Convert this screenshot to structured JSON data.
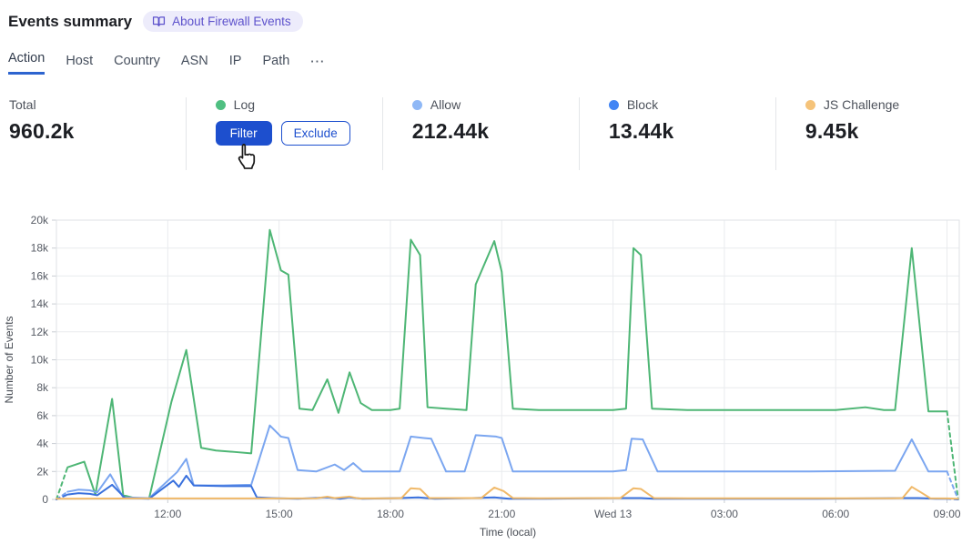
{
  "header": {
    "title": "Events summary",
    "about_badge": "About Firewall Events"
  },
  "tabs": {
    "items": [
      "Action",
      "Host",
      "Country",
      "ASN",
      "IP",
      "Path"
    ],
    "active": "Action",
    "more_label": "···"
  },
  "stats": {
    "cards": [
      {
        "label": "Total",
        "value": "960.2k"
      },
      {
        "label": "Log",
        "dot_color": "#4fbf81",
        "filter_label": "Filter",
        "exclude_label": "Exclude"
      },
      {
        "label": "Allow",
        "value": "212.44k",
        "dot_color": "#8fb8f6"
      },
      {
        "label": "Block",
        "value": "13.44k",
        "dot_color": "#4285f4"
      },
      {
        "label": "JS Challenge",
        "value": "9.45k",
        "dot_color": "#f5c37a"
      }
    ]
  },
  "ui_colors": {
    "accent_blue": "#1d4fce",
    "tab_underline": "#2d64cf",
    "badge_bg": "#edecfb",
    "badge_text": "#5d52cc"
  },
  "chart_data": {
    "type": "line",
    "title": "",
    "xlabel": "Time (local)",
    "ylabel": "Number of Events",
    "y_unit": "thousands of events",
    "ylim_k": [
      0,
      20
    ],
    "grid": true,
    "y_ticks": [
      {
        "v": 0,
        "label": "0"
      },
      {
        "v": 2,
        "label": "2k"
      },
      {
        "v": 4,
        "label": "4k"
      },
      {
        "v": 6,
        "label": "6k"
      },
      {
        "v": 8,
        "label": "8k"
      },
      {
        "v": 10,
        "label": "10k"
      },
      {
        "v": 12,
        "label": "12k"
      },
      {
        "v": 14,
        "label": "14k"
      },
      {
        "v": 16,
        "label": "16k"
      },
      {
        "v": 18,
        "label": "18k"
      },
      {
        "v": 20,
        "label": "20k"
      }
    ],
    "x_range_hours": [
      0,
      24.33
    ],
    "x_ticks": [
      {
        "h": 3,
        "label": "12:00"
      },
      {
        "h": 6,
        "label": "15:00"
      },
      {
        "h": 9,
        "label": "18:00"
      },
      {
        "h": 12,
        "label": "21:00"
      },
      {
        "h": 15,
        "label": "Wed 13"
      },
      {
        "h": 18,
        "label": "03:00"
      },
      {
        "h": 21,
        "label": "06:00"
      },
      {
        "h": 24,
        "label": "09:00"
      }
    ],
    "series": [
      {
        "name": "Log",
        "color": "#4eb675",
        "dashed_ends": true,
        "points": [
          [
            0,
            0
          ],
          [
            0.3,
            2.3
          ],
          [
            0.75,
            2.7
          ],
          [
            1.05,
            0.35
          ],
          [
            1.5,
            7.2
          ],
          [
            1.8,
            0.3
          ],
          [
            2.1,
            0.1
          ],
          [
            2.5,
            0.1
          ],
          [
            3.1,
            7
          ],
          [
            3.5,
            10.7
          ],
          [
            3.9,
            3.7
          ],
          [
            4.3,
            3.5
          ],
          [
            4.8,
            3.4
          ],
          [
            5.25,
            3.3
          ],
          [
            5.75,
            19.3
          ],
          [
            6.05,
            16.4
          ],
          [
            6.25,
            16.1
          ],
          [
            6.55,
            6.5
          ],
          [
            6.9,
            6.4
          ],
          [
            7.3,
            8.6
          ],
          [
            7.6,
            6.2
          ],
          [
            7.9,
            9.1
          ],
          [
            8.2,
            6.9
          ],
          [
            8.5,
            6.4
          ],
          [
            9,
            6.4
          ],
          [
            9.25,
            6.5
          ],
          [
            9.55,
            18.6
          ],
          [
            9.8,
            17.5
          ],
          [
            10,
            6.6
          ],
          [
            10.5,
            6.5
          ],
          [
            11.05,
            6.4
          ],
          [
            11.3,
            15.4
          ],
          [
            11.8,
            18.5
          ],
          [
            12,
            16.3
          ],
          [
            12.3,
            6.5
          ],
          [
            13,
            6.4
          ],
          [
            14,
            6.4
          ],
          [
            15,
            6.4
          ],
          [
            15.35,
            6.5
          ],
          [
            15.55,
            18
          ],
          [
            15.75,
            17.5
          ],
          [
            16.05,
            6.5
          ],
          [
            17,
            6.4
          ],
          [
            18,
            6.4
          ],
          [
            19,
            6.4
          ],
          [
            20,
            6.4
          ],
          [
            21,
            6.4
          ],
          [
            21.8,
            6.6
          ],
          [
            22.3,
            6.4
          ],
          [
            22.6,
            6.4
          ],
          [
            23.05,
            18
          ],
          [
            23.5,
            6.3
          ],
          [
            24,
            6.3
          ],
          [
            24.3,
            0
          ]
        ]
      },
      {
        "name": "Allow",
        "color": "#7ba6f0",
        "dashed_ends": true,
        "points": [
          [
            0,
            0
          ],
          [
            0.3,
            0.55
          ],
          [
            0.6,
            0.7
          ],
          [
            0.9,
            0.65
          ],
          [
            1.1,
            0.5
          ],
          [
            1.45,
            1.8
          ],
          [
            1.8,
            0.15
          ],
          [
            2.5,
            0.1
          ],
          [
            3.25,
            1.95
          ],
          [
            3.5,
            2.9
          ],
          [
            3.7,
            1
          ],
          [
            4.5,
            1
          ],
          [
            5.25,
            1.05
          ],
          [
            5.75,
            5.3
          ],
          [
            6.05,
            4.5
          ],
          [
            6.25,
            4.4
          ],
          [
            6.5,
            2.1
          ],
          [
            7,
            2
          ],
          [
            7.5,
            2.5
          ],
          [
            7.75,
            2.1
          ],
          [
            8,
            2.6
          ],
          [
            8.25,
            2
          ],
          [
            9.25,
            2
          ],
          [
            9.55,
            4.5
          ],
          [
            9.9,
            4.4
          ],
          [
            10.1,
            4.35
          ],
          [
            10.5,
            2
          ],
          [
            11,
            2
          ],
          [
            11.3,
            4.6
          ],
          [
            11.85,
            4.5
          ],
          [
            12,
            4.4
          ],
          [
            12.3,
            2
          ],
          [
            13.5,
            2
          ],
          [
            15,
            2
          ],
          [
            15.35,
            2.1
          ],
          [
            15.5,
            4.35
          ],
          [
            15.8,
            4.3
          ],
          [
            16.2,
            2
          ],
          [
            18,
            2
          ],
          [
            20,
            2
          ],
          [
            22.6,
            2.05
          ],
          [
            23.05,
            4.3
          ],
          [
            23.5,
            2
          ],
          [
            24,
            2
          ],
          [
            24.3,
            0
          ]
        ]
      },
      {
        "name": "Block",
        "color": "#3a71dd",
        "dashed_ends": true,
        "points": [
          [
            0,
            0
          ],
          [
            0.3,
            0.35
          ],
          [
            0.6,
            0.45
          ],
          [
            0.9,
            0.4
          ],
          [
            1.1,
            0.3
          ],
          [
            1.5,
            1.05
          ],
          [
            1.85,
            0.1
          ],
          [
            2.5,
            0.05
          ],
          [
            3.15,
            1.35
          ],
          [
            3.3,
            0.9
          ],
          [
            3.5,
            1.7
          ],
          [
            3.7,
            1
          ],
          [
            4.5,
            0.95
          ],
          [
            5.25,
            0.95
          ],
          [
            5.4,
            0.15
          ],
          [
            5.8,
            0.1
          ],
          [
            6.5,
            0.05
          ],
          [
            7.3,
            0.15
          ],
          [
            7.65,
            0.05
          ],
          [
            7.9,
            0.15
          ],
          [
            8.25,
            0.05
          ],
          [
            9.25,
            0.1
          ],
          [
            9.75,
            0.15
          ],
          [
            10.2,
            0.05
          ],
          [
            11.2,
            0.1
          ],
          [
            11.8,
            0.15
          ],
          [
            12.2,
            0.05
          ],
          [
            13.2,
            0.05
          ],
          [
            15.35,
            0.1
          ],
          [
            15.75,
            0.1
          ],
          [
            16.1,
            0.05
          ],
          [
            18,
            0.05
          ],
          [
            20.5,
            0.05
          ],
          [
            22.8,
            0.1
          ],
          [
            23.2,
            0.1
          ],
          [
            23.7,
            0.05
          ],
          [
            24,
            0.05
          ],
          [
            24.3,
            0
          ]
        ]
      },
      {
        "name": "JS Challenge",
        "color": "#f0b969",
        "dashed_ends": false,
        "points": [
          [
            0,
            0.05
          ],
          [
            2,
            0.07
          ],
          [
            3.5,
            0.07
          ],
          [
            5,
            0.07
          ],
          [
            7,
            0.08
          ],
          [
            7.3,
            0.2
          ],
          [
            7.5,
            0.1
          ],
          [
            7.9,
            0.2
          ],
          [
            8.15,
            0.07
          ],
          [
            9,
            0.08
          ],
          [
            9.3,
            0.1
          ],
          [
            9.55,
            0.8
          ],
          [
            9.8,
            0.75
          ],
          [
            10.05,
            0.1
          ],
          [
            11,
            0.1
          ],
          [
            11.45,
            0.1
          ],
          [
            11.8,
            0.85
          ],
          [
            12.05,
            0.6
          ],
          [
            12.3,
            0.1
          ],
          [
            13,
            0.08
          ],
          [
            15,
            0.1
          ],
          [
            15.2,
            0.1
          ],
          [
            15.55,
            0.8
          ],
          [
            15.75,
            0.75
          ],
          [
            16.1,
            0.1
          ],
          [
            17,
            0.08
          ],
          [
            20,
            0.08
          ],
          [
            22.5,
            0.08
          ],
          [
            22.8,
            0.1
          ],
          [
            23.05,
            0.9
          ],
          [
            23.3,
            0.5
          ],
          [
            23.55,
            0.08
          ],
          [
            24,
            0.07
          ],
          [
            24.3,
            0.05
          ]
        ]
      }
    ]
  }
}
